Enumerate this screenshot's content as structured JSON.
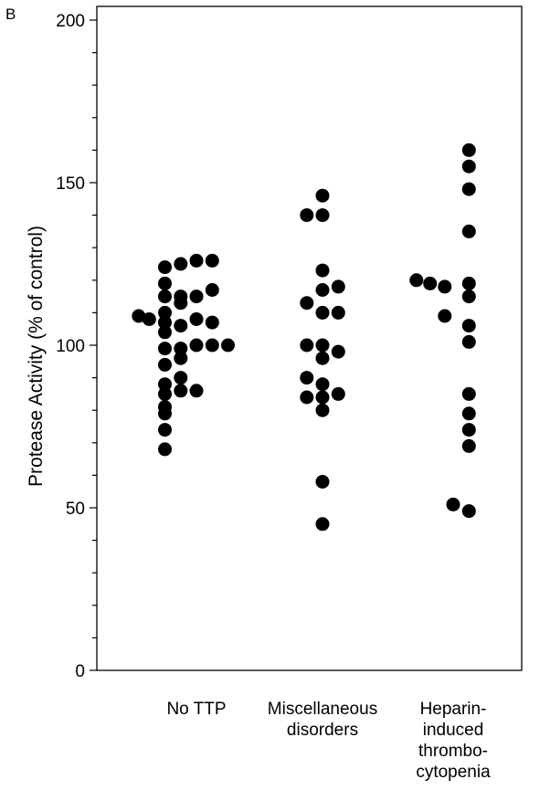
{
  "panel_label": "B",
  "chart_data": {
    "type": "scatter",
    "ylabel": "Protease Activity (% of control)",
    "ylim": [
      0,
      200
    ],
    "yticks": [
      0,
      50,
      100,
      150,
      200
    ],
    "grid": false,
    "categories": [
      [
        "No TTP"
      ],
      [
        "Miscellaneous",
        "disorders"
      ],
      [
        "Heparin-",
        "induced",
        "thrombo-",
        "cytopenia"
      ]
    ],
    "series": [
      {
        "points": [
          {
            "dx": -0.55,
            "y": 109
          },
          {
            "dx": -0.45,
            "y": 108
          },
          {
            "dx": -0.3,
            "y": 124
          },
          {
            "dx": -0.3,
            "y": 119
          },
          {
            "dx": -0.3,
            "y": 115
          },
          {
            "dx": -0.3,
            "y": 110
          },
          {
            "dx": -0.3,
            "y": 107
          },
          {
            "dx": -0.3,
            "y": 104
          },
          {
            "dx": -0.3,
            "y": 99
          },
          {
            "dx": -0.3,
            "y": 94
          },
          {
            "dx": -0.3,
            "y": 88
          },
          {
            "dx": -0.3,
            "y": 85
          },
          {
            "dx": -0.3,
            "y": 81
          },
          {
            "dx": -0.3,
            "y": 79
          },
          {
            "dx": -0.3,
            "y": 74
          },
          {
            "dx": -0.3,
            "y": 68
          },
          {
            "dx": -0.15,
            "y": 125
          },
          {
            "dx": -0.15,
            "y": 115
          },
          {
            "dx": -0.15,
            "y": 113
          },
          {
            "dx": -0.15,
            "y": 106
          },
          {
            "dx": -0.15,
            "y": 99
          },
          {
            "dx": -0.15,
            "y": 96
          },
          {
            "dx": -0.15,
            "y": 90
          },
          {
            "dx": -0.15,
            "y": 86
          },
          {
            "dx": 0.0,
            "y": 126
          },
          {
            "dx": 0.0,
            "y": 115
          },
          {
            "dx": 0.0,
            "y": 108
          },
          {
            "dx": 0.0,
            "y": 100
          },
          {
            "dx": 0.0,
            "y": 86
          },
          {
            "dx": 0.15,
            "y": 126
          },
          {
            "dx": 0.15,
            "y": 117
          },
          {
            "dx": 0.15,
            "y": 107
          },
          {
            "dx": 0.15,
            "y": 100
          },
          {
            "dx": 0.3,
            "y": 100
          }
        ]
      },
      {
        "points": [
          {
            "dx": -0.15,
            "y": 140
          },
          {
            "dx": 0.0,
            "y": 140
          },
          {
            "dx": 0.0,
            "y": 146
          },
          {
            "dx": 0.0,
            "y": 123
          },
          {
            "dx": 0.0,
            "y": 117
          },
          {
            "dx": 0.15,
            "y": 118
          },
          {
            "dx": -0.15,
            "y": 113
          },
          {
            "dx": 0.0,
            "y": 110
          },
          {
            "dx": 0.15,
            "y": 110
          },
          {
            "dx": -0.15,
            "y": 100
          },
          {
            "dx": 0.0,
            "y": 100
          },
          {
            "dx": 0.15,
            "y": 98
          },
          {
            "dx": 0.0,
            "y": 96
          },
          {
            "dx": -0.15,
            "y": 90
          },
          {
            "dx": 0.0,
            "y": 88
          },
          {
            "dx": -0.15,
            "y": 84
          },
          {
            "dx": 0.0,
            "y": 84
          },
          {
            "dx": 0.15,
            "y": 85
          },
          {
            "dx": 0.0,
            "y": 80
          },
          {
            "dx": 0.0,
            "y": 58
          },
          {
            "dx": 0.0,
            "y": 45
          }
        ]
      },
      {
        "points": [
          {
            "dx": 0.15,
            "y": 160
          },
          {
            "dx": 0.15,
            "y": 155
          },
          {
            "dx": 0.15,
            "y": 148
          },
          {
            "dx": 0.15,
            "y": 135
          },
          {
            "dx": -0.35,
            "y": 120
          },
          {
            "dx": -0.22,
            "y": 119
          },
          {
            "dx": -0.08,
            "y": 118
          },
          {
            "dx": 0.15,
            "y": 119
          },
          {
            "dx": 0.15,
            "y": 115
          },
          {
            "dx": -0.08,
            "y": 109
          },
          {
            "dx": 0.15,
            "y": 106
          },
          {
            "dx": 0.15,
            "y": 101
          },
          {
            "dx": 0.15,
            "y": 85
          },
          {
            "dx": 0.15,
            "y": 79
          },
          {
            "dx": 0.15,
            "y": 74
          },
          {
            "dx": 0.15,
            "y": 69
          },
          {
            "dx": 0.0,
            "y": 51
          },
          {
            "dx": 0.15,
            "y": 49
          }
        ]
      }
    ]
  }
}
